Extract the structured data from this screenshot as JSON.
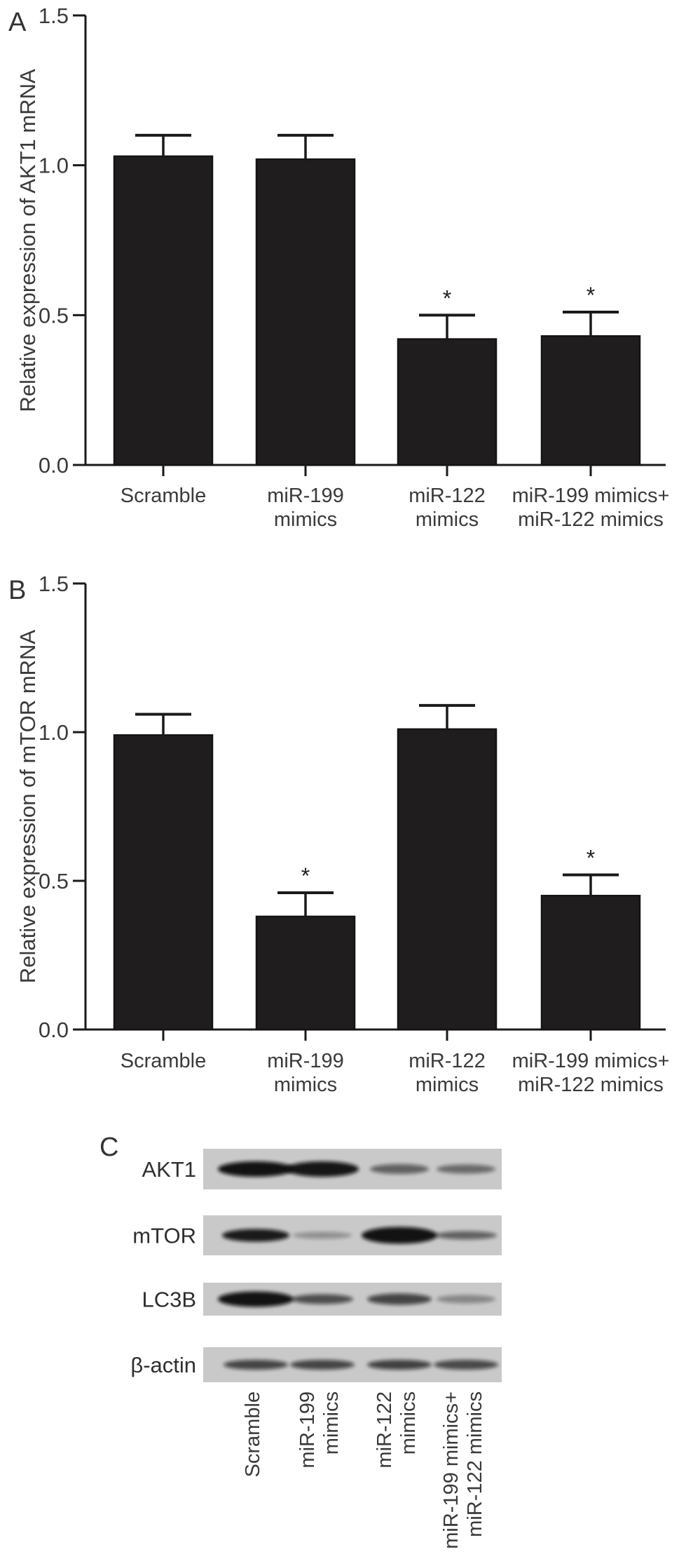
{
  "figure": {
    "panel_letters": [
      "A",
      "B",
      "C"
    ],
    "accent_colors": {
      "bar_fill": "#201d1e",
      "bar_stroke": "#141414",
      "axis_stroke": "#1a1a1a",
      "blot_strip_bg": "#c9c9c9",
      "blot_band": "#0d0d0d",
      "text": "#3a3a3a"
    }
  },
  "chart_data": [
    {
      "type": "bar",
      "panel_label": "A",
      "ylabel": "Relative expression of AKT1 mRNA",
      "ylim": [
        0,
        1.5
      ],
      "grid": false,
      "ytick_values": [
        0.0,
        0.5,
        1.0,
        1.5
      ],
      "ytick_labels": [
        "0.0",
        "0.5",
        "1.0",
        "1.5"
      ],
      "categories": [
        [
          "Scramble"
        ],
        [
          "miR-199",
          "mimics"
        ],
        [
          "miR-122",
          "mimics"
        ],
        [
          "miR-199 mimics+",
          "miR-122 mimics"
        ]
      ],
      "values": [
        1.03,
        1.02,
        0.42,
        0.43
      ],
      "errors": [
        0.07,
        0.08,
        0.08,
        0.08
      ],
      "significance": [
        "",
        "",
        "*",
        "*"
      ]
    },
    {
      "type": "bar",
      "panel_label": "B",
      "ylabel": "Relative expression of mTOR mRNA",
      "ylim": [
        0,
        1.5
      ],
      "grid": false,
      "ytick_values": [
        0.0,
        0.5,
        1.0,
        1.5
      ],
      "ytick_labels": [
        "0.0",
        "0.5",
        "1.0",
        "1.5"
      ],
      "categories": [
        [
          "Scramble"
        ],
        [
          "miR-199",
          "mimics"
        ],
        [
          "miR-122",
          "mimics"
        ],
        [
          "miR-199 mimics+",
          "miR-122 mimics"
        ]
      ],
      "values": [
        0.99,
        0.38,
        1.01,
        0.45
      ],
      "errors": [
        0.07,
        0.08,
        0.08,
        0.07
      ],
      "significance": [
        "",
        "*",
        "",
        "*"
      ]
    },
    {
      "type": "blot",
      "panel_label": "C",
      "rows": [
        {
          "label": "AKT1",
          "band_intensities": [
            0.97,
            0.95,
            0.55,
            0.5
          ],
          "band_rx": [
            54,
            52,
            42,
            42
          ],
          "band_ry": [
            11,
            11,
            7,
            6.5
          ]
        },
        {
          "label": "mTOR",
          "band_intensities": [
            0.93,
            0.3,
            0.97,
            0.55
          ],
          "band_rx": [
            48,
            42,
            54,
            44
          ],
          "band_ry": [
            9,
            5,
            12,
            6
          ]
        },
        {
          "label": "LC3B",
          "band_intensities": [
            0.97,
            0.65,
            0.7,
            0.35
          ],
          "band_rx": [
            54,
            44,
            46,
            42
          ],
          "band_ry": [
            11,
            7,
            8,
            6
          ]
        },
        {
          "label": "β-actin",
          "band_intensities": [
            0.7,
            0.7,
            0.72,
            0.68
          ],
          "band_rx": [
            46,
            46,
            46,
            46
          ],
          "band_ry": [
            7,
            7,
            7,
            7
          ]
        }
      ],
      "lane_labels": [
        [
          "Scramble"
        ],
        [
          "miR-199",
          "mimics"
        ],
        [
          "miR-122",
          "mimics"
        ],
        [
          "miR-199 mimics+",
          "miR-122 mimics"
        ]
      ]
    }
  ]
}
